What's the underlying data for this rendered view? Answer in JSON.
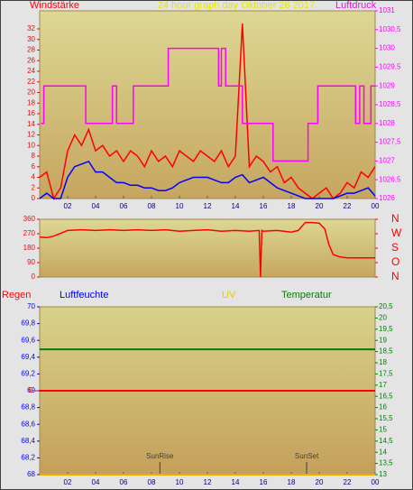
{
  "chart_data": [
    {
      "type": "line",
      "title": "24 hour graph day   Oktober 28 2017",
      "ylabel": "Windstärke",
      "y2label": "Luftdruck",
      "xlim": [
        0,
        24
      ],
      "xticks": [
        {
          "value": 2,
          "label": "02"
        },
        {
          "value": 4,
          "label": "04"
        },
        {
          "value": 6,
          "label": "06"
        },
        {
          "value": 8,
          "label": "08"
        },
        10,
        12,
        14,
        16,
        18,
        20,
        22,
        {
          "value": 24,
          "label": "00"
        }
      ],
      "ylim": [
        0,
        35.4
      ],
      "yticks": [
        0,
        2,
        4,
        6,
        8,
        10,
        12,
        14,
        16,
        18,
        20,
        22,
        24,
        26,
        28,
        30,
        32
      ],
      "y2lim": [
        1026,
        1031
      ],
      "y2ticks": [
        1026,
        {
          "value": 1026.5,
          "label": "1026,5"
        },
        1027,
        {
          "value": 1027.5,
          "label": "1027,5"
        },
        1028,
        {
          "value": 1028.5,
          "label": "1028,5"
        },
        1029,
        {
          "value": 1029.5,
          "label": "1029,5"
        },
        1030,
        {
          "value": 1030.5,
          "label": "1030,5"
        },
        1031
      ],
      "series": [
        {
          "color": "#ff0000",
          "x": [
            0,
            0.5,
            1,
            1.5,
            2,
            2.5,
            3,
            3.5,
            4,
            4.5,
            5,
            5.5,
            6,
            6.5,
            7,
            7.5,
            8,
            8.5,
            9,
            9.5,
            10,
            10.5,
            11,
            11.5,
            12,
            12.5,
            13,
            13.5,
            14,
            14.5,
            15,
            15.5,
            16,
            16.5,
            17,
            17.5,
            18,
            18.5,
            19,
            19.5,
            20,
            20.5,
            21,
            21.5,
            22,
            22.5,
            23,
            23.5,
            24
          ],
          "values": [
            4,
            5,
            0,
            2,
            9,
            12,
            10,
            13,
            9,
            10,
            8,
            9,
            7,
            9,
            8,
            6,
            9,
            7,
            8,
            6,
            9,
            8,
            7,
            9,
            8,
            7,
            9,
            6,
            8,
            33,
            6,
            8,
            7,
            5,
            6,
            3,
            4,
            2,
            1,
            0,
            1,
            2,
            0,
            1,
            3,
            2,
            5,
            4,
            6
          ]
        },
        {
          "color": "#0000ff",
          "x": [
            0,
            0.5,
            1,
            1.5,
            2,
            2.5,
            3,
            3.5,
            4,
            4.5,
            5,
            5.5,
            6,
            6.5,
            7,
            7.5,
            8,
            8.5,
            9,
            9.5,
            10,
            10.5,
            11,
            11.5,
            12,
            12.5,
            13,
            13.5,
            14,
            14.5,
            15,
            15.5,
            16,
            16.5,
            17,
            17.5,
            18,
            18.5,
            19,
            19.5,
            20,
            20.5,
            21,
            21.5,
            22,
            22.5,
            23,
            23.5,
            24
          ],
          "values": [
            0,
            1,
            0,
            0,
            4,
            6,
            6.5,
            7,
            5,
            5,
            4,
            3,
            3,
            2.5,
            2.5,
            2,
            2,
            1.5,
            1.5,
            2,
            3,
            3.5,
            4,
            4,
            4,
            3.5,
            3,
            3,
            4,
            4.5,
            3,
            3.5,
            4,
            3,
            2,
            1.5,
            1,
            0.5,
            0,
            0,
            0,
            0,
            0,
            0.5,
            1,
            1,
            1.5,
            2,
            0.5
          ]
        },
        {
          "color": "#ff00ff",
          "axis": "y2",
          "x": [
            0.1,
            0.3,
            0.3,
            3.3,
            3.3,
            5.2,
            5.2,
            5.5,
            5.5,
            6.7,
            6.7,
            9.2,
            9.2,
            12.8,
            12.8,
            13.0,
            13.0,
            13.3,
            13.3,
            14.5,
            14.5,
            16.7,
            16.7,
            19.2,
            19.2,
            19.9,
            19.9,
            22.6,
            22.6,
            22.9,
            22.9,
            23.2,
            23.2,
            23.7,
            23.7,
            24
          ],
          "values": [
            1028,
            1028,
            1029,
            1029,
            1028,
            1028,
            1029,
            1029,
            1028,
            1028,
            1029,
            1029,
            1030,
            1030,
            1029,
            1029,
            1030,
            1030,
            1029,
            1029,
            1028,
            1028,
            1027,
            1027,
            1028,
            1028,
            1029,
            1029,
            1028,
            1028,
            1029,
            1029,
            1028,
            1028,
            1029,
            1029
          ]
        }
      ]
    },
    {
      "type": "line",
      "xlim": [
        0,
        24
      ],
      "ylim": [
        0,
        360
      ],
      "yticks": [
        0,
        90,
        180,
        270,
        360
      ],
      "y2lim": [
        0,
        360
      ],
      "y2ticks": [
        {
          "value": 0,
          "label": "N"
        },
        {
          "value": 90,
          "label": "O"
        },
        {
          "value": 180,
          "label": "S"
        },
        {
          "value": 270,
          "label": "W"
        },
        {
          "value": 360,
          "label": "N"
        }
      ],
      "series": [
        {
          "color": "#ff0000",
          "x": [
            0,
            0.5,
            1,
            2,
            3,
            4,
            5,
            6,
            7,
            8,
            9,
            10,
            11,
            12,
            13,
            14,
            15,
            15.7,
            15.8,
            15.9,
            16,
            17,
            18,
            18.5,
            19,
            19.5,
            20,
            20.4,
            20.7,
            21,
            21.5,
            22,
            23,
            24
          ],
          "values": [
            250,
            245,
            255,
            290,
            295,
            290,
            295,
            290,
            295,
            290,
            295,
            285,
            290,
            295,
            285,
            290,
            285,
            290,
            0,
            290,
            285,
            290,
            280,
            290,
            340,
            340,
            335,
            300,
            200,
            140,
            125,
            120,
            120,
            120
          ]
        }
      ]
    },
    {
      "type": "line",
      "ylabel": "Luftfeuchte",
      "xlim": [
        0,
        24
      ],
      "xticks": [
        {
          "value": 2,
          "label": "02"
        },
        {
          "value": 4,
          "label": "04"
        },
        {
          "value": 6,
          "label": "06"
        },
        {
          "value": 8,
          "label": "08"
        },
        10,
        12,
        14,
        16,
        18,
        20,
        22,
        {
          "value": 24,
          "label": "00"
        }
      ],
      "ylim": [
        68,
        70
      ],
      "yticks": [
        68,
        {
          "value": 68.2,
          "label": "68,2"
        },
        {
          "value": 68.4,
          "label": "68,4"
        },
        {
          "value": 68.6,
          "label": "68,6"
        },
        {
          "value": 68.8,
          "label": "68,8"
        },
        69,
        {
          "value": 69.2,
          "label": "69,2"
        },
        {
          "value": 69.4,
          "label": "69,4"
        },
        {
          "value": 69.6,
          "label": "69,6"
        },
        {
          "value": 69.8,
          "label": "69,8"
        },
        70
      ],
      "y2lim": [
        13,
        20.5
      ],
      "y2ticks": [
        13,
        {
          "value": 13.5,
          "label": "13,5"
        },
        14,
        {
          "value": 14.5,
          "label": "14,5"
        },
        15,
        {
          "value": 15.5,
          "label": "15,5"
        },
        16,
        {
          "value": 16.5,
          "label": "16,5"
        },
        17,
        {
          "value": 17.5,
          "label": "17,5"
        },
        18,
        {
          "value": 18.5,
          "label": "18,5"
        },
        19,
        {
          "value": 19.5,
          "label": "19,5"
        },
        20,
        {
          "value": 20.5,
          "label": "20,5"
        }
      ],
      "y3lim": [
        -1,
        1
      ],
      "y3ticks": [
        0
      ],
      "y4lim": [
        0,
        10
      ],
      "series": [
        {
          "name": "Regen",
          "color": "#ff0000",
          "axis": "y3",
          "x": [
            0,
            24
          ],
          "values": [
            0,
            0
          ]
        },
        {
          "name": "UV",
          "color": "#f0b000",
          "axis": "y4",
          "x": [
            0,
            24
          ],
          "values": [
            0,
            0
          ]
        },
        {
          "name": "Temperatur",
          "color": "#008000",
          "axis": "y2",
          "x": [
            0,
            24
          ],
          "values": [
            18.6,
            18.6
          ]
        }
      ],
      "annotations": [
        {
          "text": "SunRise",
          "x": 8.6
        },
        {
          "text": "SunSet",
          "x": 19.1
        }
      ]
    }
  ]
}
